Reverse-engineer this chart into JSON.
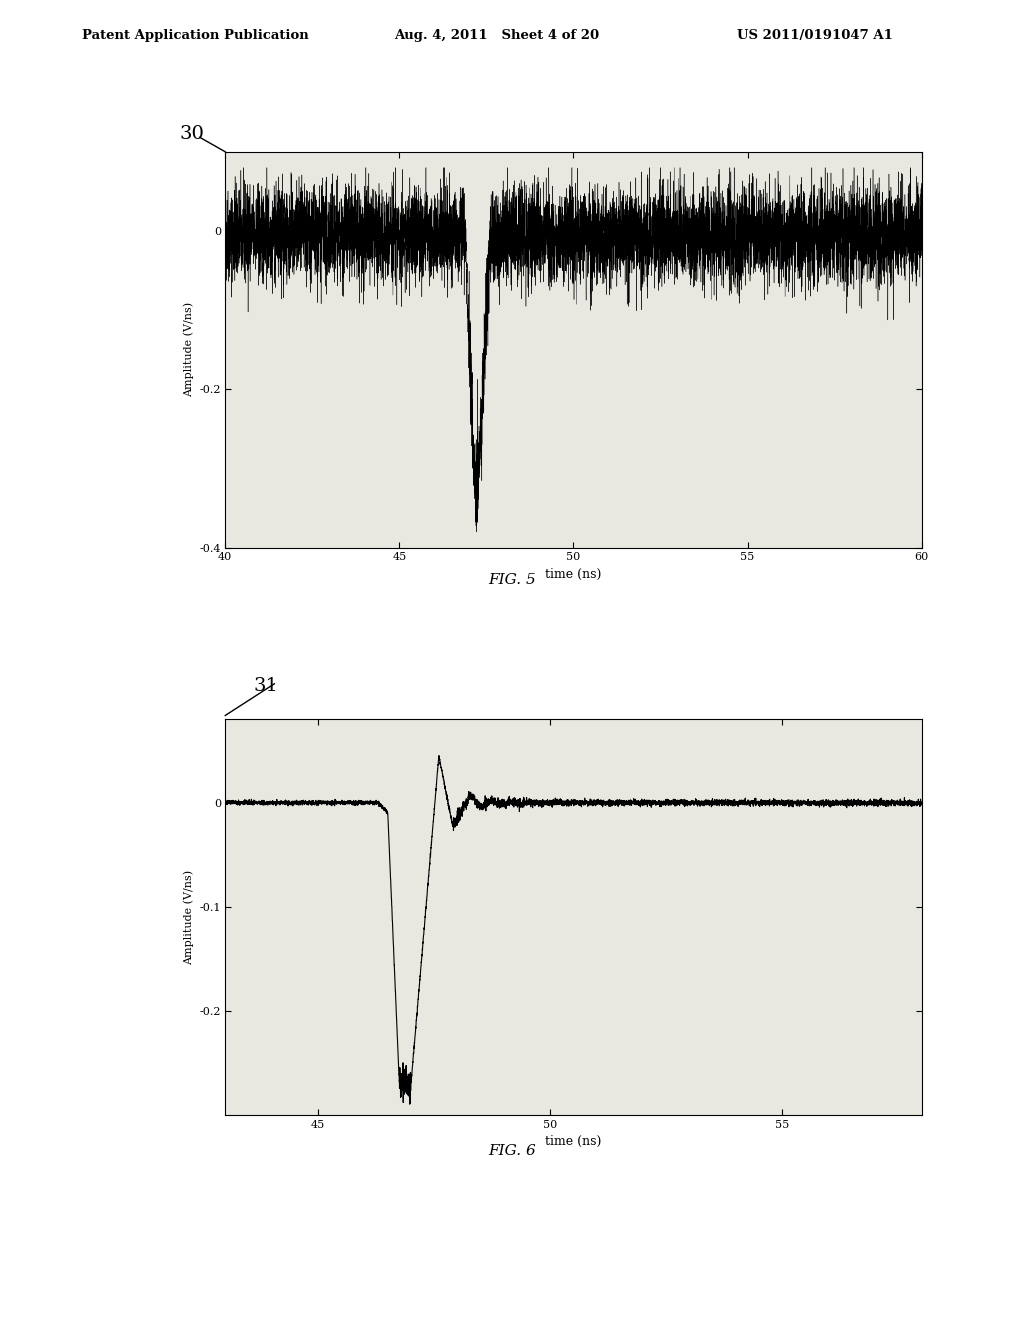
{
  "header_left": "Patent Application Publication",
  "header_mid": "Aug. 4, 2011   Sheet 4 of 20",
  "header_right": "US 2011/0191047 A1",
  "fig5_label": "30",
  "fig5_caption": "FIG. 5",
  "fig5_xlabel": "time (ns)",
  "fig5_ylabel": "Amplitude (V/ns)",
  "fig5_xlim": [
    40,
    60
  ],
  "fig5_ylim": [
    -0.4,
    0.1
  ],
  "fig5_xticks": [
    40,
    45,
    50,
    55,
    60
  ],
  "fig5_yticks": [
    -0.4,
    -0.2,
    0
  ],
  "fig6_label": "31",
  "fig6_caption": "FIG. 6",
  "fig6_xlabel": "time (ns)",
  "fig6_ylabel": "Amplitude (V/ns)",
  "fig6_xlim": [
    43,
    58
  ],
  "fig6_ylim": [
    -0.3,
    0.08
  ],
  "fig6_xticks": [
    45,
    50,
    55
  ],
  "fig6_yticks": [
    -0.2,
    -0.1,
    0
  ],
  "background_color": "#ffffff",
  "plot_bg": "#e8e8e0",
  "line_color": "#000000"
}
